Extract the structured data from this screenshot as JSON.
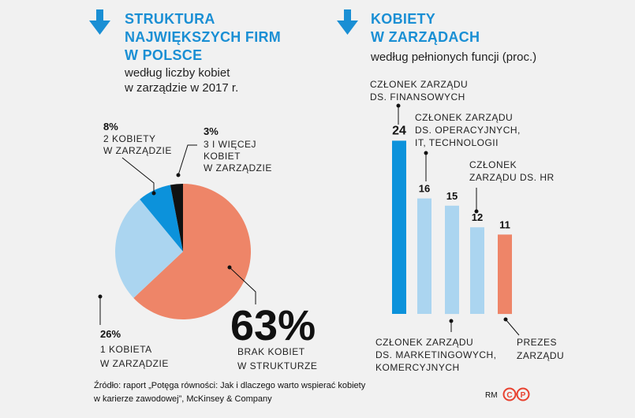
{
  "left_title": [
    "STRUKTURA",
    "NAJWIĘKSZYCH FIRM",
    "W POLSCE"
  ],
  "left_subtitle": [
    "według liczby kobiet",
    "w zarządzie w 2017 r."
  ],
  "right_title": [
    "KOBIETY",
    "W ZARZĄDACH"
  ],
  "right_subtitle": "według pełnionych funcji (proc.)",
  "source": [
    "Źródło: raport „Potęga równości: Jak i dlaczego warto wspierać kobiety",
    "w karierze zawodowej”, McKinsey & Company"
  ],
  "credit": "RM",
  "logo_letters": [
    "C",
    "P"
  ],
  "colors": {
    "title_blue": "#1a8fd4",
    "salmon": "#ee8568",
    "light_blue": "#abd5f0",
    "mid_blue": "#0c92db",
    "black": "#111111",
    "logo_red": "#e8412f"
  },
  "chart_data": [
    {
      "type": "pie",
      "slices": [
        {
          "value": 63,
          "pct_label": "63%",
          "label": [
            "BRAK KOBIET",
            "W STRUKTURZE"
          ],
          "color": "#ee8568"
        },
        {
          "value": 26,
          "pct_label": "26%",
          "label": [
            "1 KOBIETA",
            "W ZARZĄDZIE"
          ],
          "color": "#abd5f0"
        },
        {
          "value": 8,
          "pct_label": "8%",
          "label": [
            "2 KOBIETY",
            "W ZARZĄDZIE"
          ],
          "color": "#0c92db"
        },
        {
          "value": 3,
          "pct_label": "3%",
          "label": [
            "3 I WIĘCEJ",
            "KOBIET",
            "W ZARZĄDZIE"
          ],
          "color": "#111111"
        }
      ]
    },
    {
      "type": "bar",
      "categories": [
        [
          "CZŁONEK ZARZĄDU",
          "DS. FINANSOWYCH"
        ],
        [
          "CZŁONEK ZARZĄDU",
          "DS. OPERACYJNYCH,",
          "IT, TECHNOLOGII"
        ],
        [
          "CZŁONEK ZARZĄDU",
          "DS. MARKETINGOWYCH,",
          "KOMERCYJNYCH"
        ],
        [
          "CZŁONEK",
          "ZARZĄDU DS. HR"
        ],
        [
          "PREZES",
          "ZARZĄDU"
        ]
      ],
      "values": [
        24,
        16,
        15,
        12,
        11
      ],
      "colors": [
        "#0c92db",
        "#abd5f0",
        "#abd5f0",
        "#abd5f0",
        "#ee8568"
      ]
    }
  ]
}
